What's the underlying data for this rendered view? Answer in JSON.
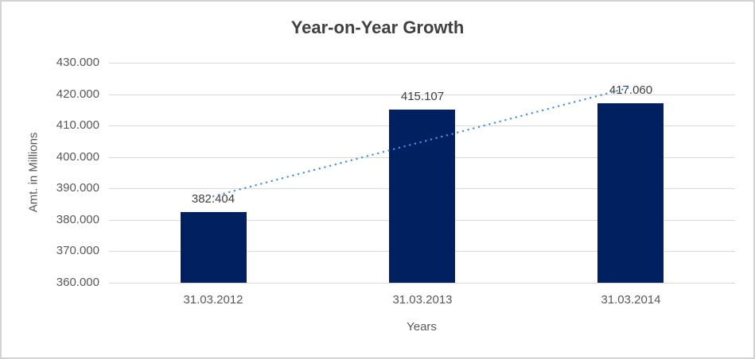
{
  "window": {
    "background_color": "#ffffff",
    "border_color": "#d3d3d3"
  },
  "chart_data": {
    "type": "bar",
    "title": "Year-on-Year Growth",
    "categories": [
      "31.03.2012",
      "31.03.2013",
      "31.03.2014"
    ],
    "values": [
      382404,
      415107,
      417060
    ],
    "data_labels": [
      "382.404",
      "415.107",
      "417.060"
    ],
    "xlabel": "Years",
    "ylabel": "Amt. in Millions",
    "ylim": [
      360000,
      430000
    ],
    "ytick_step": 10000,
    "ytick_labels": [
      "360.000",
      "370.000",
      "380.000",
      "390.000",
      "400.000",
      "410.000",
      "420.000",
      "430.000"
    ],
    "grid": true,
    "legend": "none",
    "bar_color": "#002060",
    "gridline_color": "#d9d9d9",
    "title_color": "#404040",
    "tick_label_color": "#595959",
    "data_label_color": "#404040",
    "trendline": {
      "type": "linear",
      "style": "dotted",
      "color": "#4a90d5"
    }
  }
}
